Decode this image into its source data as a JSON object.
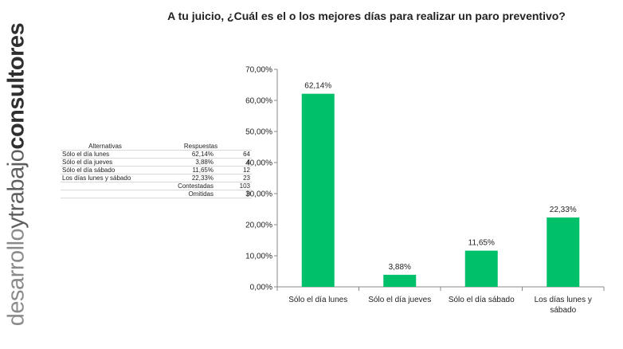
{
  "brand": {
    "part1": "desarrollo",
    "part2": "y",
    "part3": "trabajo",
    "part4": "consultores"
  },
  "title": "A tu juicio, ¿Cuál es el o los mejores días para realizar un paro preventivo?",
  "table": {
    "headers": {
      "alternatives": "Alternativas",
      "responses": "Respuestas"
    },
    "rows": [
      {
        "label": "Sólo el día lunes",
        "percent": "62,14%",
        "count": "64"
      },
      {
        "label": "Sólo el día jueves",
        "percent": "3,88%",
        "count": "4"
      },
      {
        "label": "Sólo el día sábado",
        "percent": "11,65%",
        "count": "12"
      },
      {
        "label": "Los días lunes y sábado",
        "percent": "22,33%",
        "count": "23"
      }
    ],
    "answered": {
      "label": "Contestadas",
      "count": "103"
    },
    "omitted": {
      "label": "Omitidas",
      "count": "0"
    }
  },
  "chart_data": {
    "type": "bar",
    "categories": [
      "Sólo el día lunes",
      "Sólo el día jueves",
      "Sólo el día sábado",
      "Los días lunes y sábado"
    ],
    "category_lines": [
      [
        "Sólo el día lunes"
      ],
      [
        "Sólo el día jueves"
      ],
      [
        "Sólo el día sábado"
      ],
      [
        "Los días lunes y",
        "sábado"
      ]
    ],
    "values": [
      62.14,
      3.88,
      11.65,
      22.33
    ],
    "value_labels": [
      "62,14%",
      "3,88%",
      "11,65%",
      "22,33%"
    ],
    "ylim": [
      0,
      70
    ],
    "yticks": [
      0,
      10,
      20,
      30,
      40,
      50,
      60,
      70
    ],
    "ytick_labels": [
      "0,00%",
      "10,00%",
      "20,00%",
      "30,00%",
      "40,00%",
      "50,00%",
      "60,00%",
      "70,00%"
    ],
    "bar_color": "#00c06a",
    "grid": false,
    "legend": "none"
  }
}
